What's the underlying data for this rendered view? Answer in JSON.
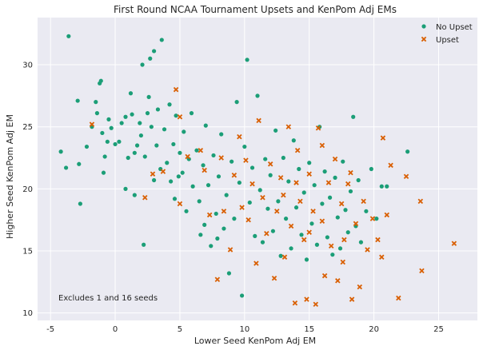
{
  "chart_data": {
    "type": "scatter",
    "title": "First Round NCAA Tournament Upsets and KenPom Adj EMs",
    "xlabel": "Lower Seed KenPom Adj EM",
    "ylabel": "Higher Seed KenPom Adj EM",
    "xlim": [
      -6,
      28
    ],
    "ylim": [
      9.4,
      33.8
    ],
    "xticks": [
      -5,
      0,
      5,
      10,
      15,
      20,
      25
    ],
    "yticks": [
      10,
      15,
      20,
      25,
      30
    ],
    "grid": true,
    "legend_position": "top-right",
    "annotation": "Excludes 1 and 16 seeds",
    "series": [
      {
        "name": "No Upset",
        "marker": "circle",
        "color": "#1b9e77",
        "points": [
          [
            -4.2,
            23.0
          ],
          [
            -3.8,
            21.7
          ],
          [
            -3.6,
            32.3
          ],
          [
            -2.8,
            22.0
          ],
          [
            -2.7,
            18.8
          ],
          [
            -2.9,
            27.1
          ],
          [
            -2.2,
            23.4
          ],
          [
            -1.8,
            25.0
          ],
          [
            -1.5,
            27.0
          ],
          [
            -1.4,
            26.1
          ],
          [
            -1.2,
            28.5
          ],
          [
            -1.1,
            28.7
          ],
          [
            -1.0,
            24.5
          ],
          [
            -0.9,
            21.3
          ],
          [
            -0.8,
            22.6
          ],
          [
            -0.6,
            23.8
          ],
          [
            -0.5,
            25.6
          ],
          [
            -0.3,
            24.9
          ],
          [
            0.0,
            23.6
          ],
          [
            0.3,
            23.8
          ],
          [
            0.5,
            25.3
          ],
          [
            0.8,
            25.8
          ],
          [
            1.0,
            22.5
          ],
          [
            1.2,
            27.7
          ],
          [
            1.3,
            26.0
          ],
          [
            1.5,
            22.9
          ],
          [
            1.7,
            23.5
          ],
          [
            1.9,
            25.3
          ],
          [
            2.0,
            24.3
          ],
          [
            2.1,
            30.0
          ],
          [
            2.3,
            22.6
          ],
          [
            2.5,
            26.1
          ],
          [
            2.6,
            27.4
          ],
          [
            2.7,
            30.5
          ],
          [
            2.8,
            25.0
          ],
          [
            3.0,
            31.1
          ],
          [
            3.2,
            23.5
          ],
          [
            3.3,
            26.4
          ],
          [
            3.5,
            21.6
          ],
          [
            3.6,
            32.0
          ],
          [
            3.8,
            24.8
          ],
          [
            4.0,
            22.1
          ],
          [
            4.2,
            26.8
          ],
          [
            4.3,
            20.6
          ],
          [
            4.5,
            23.6
          ],
          [
            4.6,
            19.2
          ],
          [
            4.7,
            25.9
          ],
          [
            4.9,
            21.0
          ],
          [
            5.0,
            22.9
          ],
          [
            5.3,
            24.6
          ],
          [
            5.5,
            18.2
          ],
          [
            5.7,
            22.4
          ],
          [
            5.9,
            26.1
          ],
          [
            6.0,
            20.2
          ],
          [
            6.3,
            23.1
          ],
          [
            6.5,
            19.0
          ],
          [
            6.6,
            16.3
          ],
          [
            6.8,
            21.9
          ],
          [
            7.0,
            25.1
          ],
          [
            7.2,
            20.3
          ],
          [
            7.4,
            15.4
          ],
          [
            7.6,
            22.7
          ],
          [
            7.8,
            18.0
          ],
          [
            8.0,
            21.0
          ],
          [
            8.2,
            24.4
          ],
          [
            8.4,
            16.8
          ],
          [
            8.6,
            19.5
          ],
          [
            8.8,
            13.2
          ],
          [
            9.0,
            22.2
          ],
          [
            9.2,
            17.6
          ],
          [
            9.4,
            27.0
          ],
          [
            9.6,
            20.5
          ],
          [
            9.8,
            11.4
          ],
          [
            10.0,
            23.4
          ],
          [
            10.2,
            30.4
          ],
          [
            10.4,
            18.9
          ],
          [
            10.6,
            21.7
          ],
          [
            10.8,
            16.2
          ],
          [
            11.0,
            27.5
          ],
          [
            11.2,
            19.9
          ],
          [
            11.4,
            15.7
          ],
          [
            11.6,
            22.4
          ],
          [
            11.8,
            18.4
          ],
          [
            12.0,
            21.1
          ],
          [
            12.2,
            16.6
          ],
          [
            12.4,
            24.7
          ],
          [
            12.6,
            19.0
          ],
          [
            12.8,
            14.6
          ],
          [
            13.0,
            22.5
          ],
          [
            13.2,
            17.6
          ],
          [
            13.4,
            20.6
          ],
          [
            13.6,
            15.2
          ],
          [
            13.8,
            23.9
          ],
          [
            14.0,
            18.5
          ],
          [
            14.2,
            21.6
          ],
          [
            14.4,
            16.3
          ],
          [
            14.6,
            19.7
          ],
          [
            14.8,
            14.3
          ],
          [
            15.0,
            22.1
          ],
          [
            15.2,
            17.2
          ],
          [
            15.4,
            20.3
          ],
          [
            15.6,
            15.5
          ],
          [
            15.8,
            25.0
          ],
          [
            16.0,
            18.8
          ],
          [
            16.2,
            21.4
          ],
          [
            16.4,
            16.1
          ],
          [
            16.6,
            19.3
          ],
          [
            16.8,
            14.7
          ],
          [
            17.0,
            20.9
          ],
          [
            17.2,
            17.7
          ],
          [
            17.4,
            15.2
          ],
          [
            17.6,
            22.2
          ],
          [
            17.8,
            18.3
          ],
          [
            18.0,
            16.5
          ],
          [
            18.2,
            19.8
          ],
          [
            18.4,
            25.8
          ],
          [
            18.6,
            17.0
          ],
          [
            18.8,
            20.7
          ],
          [
            19.0,
            15.7
          ],
          [
            19.4,
            18.2
          ],
          [
            19.8,
            21.6
          ],
          [
            20.2,
            17.6
          ],
          [
            20.6,
            20.2
          ],
          [
            21.0,
            20.2
          ],
          [
            22.6,
            23.0
          ],
          [
            2.2,
            15.5
          ],
          [
            0.8,
            20.0
          ],
          [
            1.5,
            19.5
          ],
          [
            3.0,
            20.7
          ],
          [
            5.2,
            21.3
          ],
          [
            6.9,
            17.1
          ],
          [
            7.9,
            16.0
          ]
        ]
      },
      {
        "name": "Upset",
        "marker": "x",
        "color": "#d95f02",
        "points": [
          [
            -1.8,
            25.2
          ],
          [
            2.3,
            19.3
          ],
          [
            2.9,
            21.2
          ],
          [
            3.7,
            21.4
          ],
          [
            4.7,
            28.0
          ],
          [
            5.0,
            25.8
          ],
          [
            5.0,
            18.8
          ],
          [
            5.6,
            22.6
          ],
          [
            6.6,
            23.1
          ],
          [
            6.9,
            21.5
          ],
          [
            7.3,
            17.9
          ],
          [
            7.9,
            12.7
          ],
          [
            8.2,
            22.5
          ],
          [
            8.4,
            18.2
          ],
          [
            8.9,
            15.1
          ],
          [
            9.2,
            21.1
          ],
          [
            9.6,
            24.2
          ],
          [
            9.8,
            18.5
          ],
          [
            10.1,
            22.3
          ],
          [
            10.3,
            17.5
          ],
          [
            10.6,
            20.4
          ],
          [
            10.9,
            14.0
          ],
          [
            11.1,
            25.5
          ],
          [
            11.4,
            19.3
          ],
          [
            11.7,
            16.4
          ],
          [
            12.0,
            22.0
          ],
          [
            12.3,
            12.8
          ],
          [
            12.5,
            18.2
          ],
          [
            12.8,
            20.9
          ],
          [
            13.1,
            14.5
          ],
          [
            13.4,
            25.0
          ],
          [
            13.6,
            17.0
          ],
          [
            13.9,
            10.8
          ],
          [
            14.1,
            23.1
          ],
          [
            14.3,
            19.0
          ],
          [
            14.6,
            15.9
          ],
          [
            14.8,
            11.1
          ],
          [
            15.0,
            21.2
          ],
          [
            15.3,
            18.2
          ],
          [
            15.5,
            10.7
          ],
          [
            15.7,
            24.9
          ],
          [
            16.0,
            17.4
          ],
          [
            16.2,
            13.0
          ],
          [
            16.5,
            20.5
          ],
          [
            16.7,
            15.4
          ],
          [
            17.0,
            22.4
          ],
          [
            17.2,
            12.6
          ],
          [
            17.5,
            18.8
          ],
          [
            17.7,
            15.9
          ],
          [
            18.0,
            20.4
          ],
          [
            18.3,
            11.1
          ],
          [
            18.6,
            17.2
          ],
          [
            18.9,
            12.1
          ],
          [
            19.2,
            19.0
          ],
          [
            19.5,
            15.1
          ],
          [
            19.9,
            17.6
          ],
          [
            20.3,
            15.9
          ],
          [
            20.7,
            24.1
          ],
          [
            21.0,
            17.9
          ],
          [
            21.3,
            21.9
          ],
          [
            21.9,
            11.2
          ],
          [
            22.5,
            21.0
          ],
          [
            23.6,
            19.0
          ],
          [
            23.7,
            13.4
          ],
          [
            26.2,
            15.6
          ],
          [
            20.6,
            14.5
          ],
          [
            14.0,
            20.5
          ],
          [
            15.0,
            16.5
          ],
          [
            13.0,
            19.5
          ],
          [
            16.0,
            23.5
          ],
          [
            17.6,
            14.1
          ],
          [
            18.2,
            21.3
          ]
        ]
      }
    ]
  }
}
